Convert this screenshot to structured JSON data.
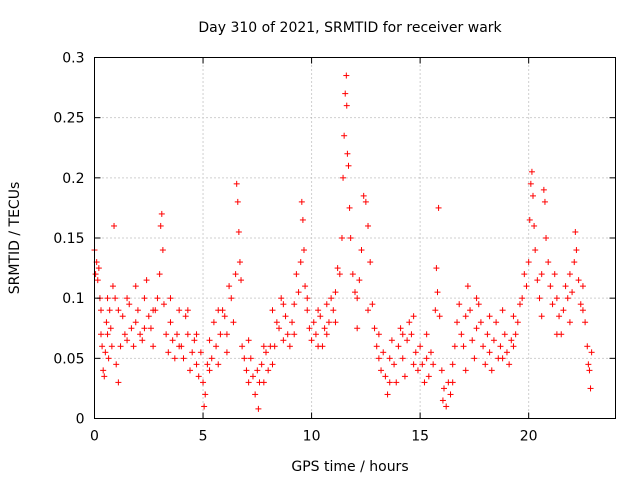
{
  "chart_data": {
    "type": "scatter",
    "title": "Day 310 of 2021, SRMTID for receiver wark",
    "xlabel": "GPS time / hours",
    "ylabel": "SRMTID / TECUs",
    "xlim": [
      0,
      24
    ],
    "ylim": [
      0,
      0.3
    ],
    "xticks": [
      0,
      5,
      10,
      15,
      20
    ],
    "xtick_labels": [
      "0",
      "5",
      "10",
      "15",
      "20"
    ],
    "yticks": [
      0,
      0.05,
      0.1,
      0.15,
      0.2,
      0.25,
      0.3
    ],
    "ytick_labels": [
      "0",
      "0.05",
      "0.1",
      "0.15",
      "0.2",
      "0.25",
      "0.3"
    ],
    "grid": true,
    "marker": "plus",
    "color": "#ff0000",
    "series": [
      {
        "name": "SRMTID",
        "points": [
          [
            0.0,
            0.14
          ],
          [
            0.05,
            0.12
          ],
          [
            0.1,
            0.13
          ],
          [
            0.15,
            0.115
          ],
          [
            0.2,
            0.125
          ],
          [
            0.25,
            0.1
          ],
          [
            0.3,
            0.09
          ],
          [
            0.35,
            0.06
          ],
          [
            0.4,
            0.04
          ],
          [
            0.45,
            0.035
          ],
          [
            0.5,
            0.055
          ],
          [
            0.55,
            0.08
          ],
          [
            0.6,
            0.07
          ],
          [
            0.65,
            0.05
          ],
          [
            0.7,
            0.09
          ],
          [
            0.75,
            0.075
          ],
          [
            0.8,
            0.06
          ],
          [
            0.85,
            0.11
          ],
          [
            0.9,
            0.16
          ],
          [
            0.95,
            0.1
          ],
          [
            1.0,
            0.045
          ],
          [
            1.1,
            0.03
          ],
          [
            1.2,
            0.06
          ],
          [
            1.3,
            0.085
          ],
          [
            1.4,
            0.07
          ],
          [
            1.5,
            0.1
          ],
          [
            1.6,
            0.095
          ],
          [
            1.7,
            0.075
          ],
          [
            1.8,
            0.06
          ],
          [
            1.9,
            0.08
          ],
          [
            2.0,
            0.09
          ],
          [
            2.1,
            0.07
          ],
          [
            2.2,
            0.065
          ],
          [
            2.3,
            0.1
          ],
          [
            2.4,
            0.115
          ],
          [
            2.5,
            0.085
          ],
          [
            2.6,
            0.075
          ],
          [
            2.7,
            0.06
          ],
          [
            2.8,
            0.09
          ],
          [
            2.9,
            0.1
          ],
          [
            3.0,
            0.12
          ],
          [
            3.05,
            0.16
          ],
          [
            3.1,
            0.17
          ],
          [
            3.15,
            0.14
          ],
          [
            3.2,
            0.095
          ],
          [
            3.3,
            0.07
          ],
          [
            3.4,
            0.055
          ],
          [
            3.5,
            0.08
          ],
          [
            3.6,
            0.065
          ],
          [
            3.7,
            0.05
          ],
          [
            3.8,
            0.07
          ],
          [
            3.9,
            0.09
          ],
          [
            4.0,
            0.06
          ],
          [
            4.1,
            0.05
          ],
          [
            4.2,
            0.085
          ],
          [
            4.3,
            0.07
          ],
          [
            4.4,
            0.04
          ],
          [
            4.5,
            0.055
          ],
          [
            4.6,
            0.065
          ],
          [
            4.7,
            0.045
          ],
          [
            4.8,
            0.035
          ],
          [
            4.9,
            0.055
          ],
          [
            5.0,
            0.03
          ],
          [
            5.05,
            0.01
          ],
          [
            5.1,
            0.02
          ],
          [
            5.2,
            0.045
          ],
          [
            5.3,
            0.065
          ],
          [
            5.4,
            0.05
          ],
          [
            5.5,
            0.08
          ],
          [
            5.6,
            0.06
          ],
          [
            5.7,
            0.045
          ],
          [
            5.8,
            0.07
          ],
          [
            5.9,
            0.09
          ],
          [
            6.0,
            0.085
          ],
          [
            6.1,
            0.07
          ],
          [
            6.2,
            0.11
          ],
          [
            6.3,
            0.1
          ],
          [
            6.4,
            0.08
          ],
          [
            6.5,
            0.12
          ],
          [
            6.55,
            0.195
          ],
          [
            6.6,
            0.18
          ],
          [
            6.65,
            0.155
          ],
          [
            6.7,
            0.13
          ],
          [
            6.75,
            0.115
          ],
          [
            6.8,
            0.06
          ],
          [
            6.9,
            0.05
          ],
          [
            7.0,
            0.04
          ],
          [
            7.1,
            0.065
          ],
          [
            7.2,
            0.05
          ],
          [
            7.3,
            0.035
          ],
          [
            7.4,
            0.02
          ],
          [
            7.5,
            0.04
          ],
          [
            7.55,
            0.008
          ],
          [
            7.6,
            0.03
          ],
          [
            7.7,
            0.045
          ],
          [
            7.8,
            0.03
          ],
          [
            7.9,
            0.055
          ],
          [
            8.0,
            0.04
          ],
          [
            8.1,
            0.06
          ],
          [
            8.2,
            0.045
          ],
          [
            8.3,
            0.06
          ],
          [
            8.4,
            0.08
          ],
          [
            8.5,
            0.075
          ],
          [
            8.6,
            0.1
          ],
          [
            8.7,
            0.095
          ],
          [
            8.8,
            0.085
          ],
          [
            8.9,
            0.07
          ],
          [
            9.0,
            0.06
          ],
          [
            9.1,
            0.08
          ],
          [
            9.2,
            0.095
          ],
          [
            9.3,
            0.12
          ],
          [
            9.4,
            0.105
          ],
          [
            9.5,
            0.13
          ],
          [
            9.55,
            0.18
          ],
          [
            9.6,
            0.165
          ],
          [
            9.65,
            0.14
          ],
          [
            9.7,
            0.11
          ],
          [
            9.8,
            0.09
          ],
          [
            9.9,
            0.075
          ],
          [
            10.0,
            0.065
          ],
          [
            10.1,
            0.08
          ],
          [
            10.2,
            0.07
          ],
          [
            10.3,
            0.09
          ],
          [
            10.4,
            0.085
          ],
          [
            10.5,
            0.06
          ],
          [
            10.6,
            0.075
          ],
          [
            10.7,
            0.095
          ],
          [
            10.8,
            0.08
          ],
          [
            10.9,
            0.1
          ],
          [
            11.0,
            0.09
          ],
          [
            11.1,
            0.105
          ],
          [
            11.2,
            0.125
          ],
          [
            11.3,
            0.12
          ],
          [
            11.4,
            0.15
          ],
          [
            11.45,
            0.2
          ],
          [
            11.5,
            0.235
          ],
          [
            11.55,
            0.27
          ],
          [
            11.6,
            0.285
          ],
          [
            11.62,
            0.26
          ],
          [
            11.65,
            0.22
          ],
          [
            11.7,
            0.21
          ],
          [
            11.75,
            0.175
          ],
          [
            11.8,
            0.15
          ],
          [
            11.9,
            0.12
          ],
          [
            12.0,
            0.105
          ],
          [
            12.1,
            0.1
          ],
          [
            12.2,
            0.115
          ],
          [
            12.3,
            0.14
          ],
          [
            12.4,
            0.185
          ],
          [
            12.5,
            0.18
          ],
          [
            12.6,
            0.16
          ],
          [
            12.7,
            0.13
          ],
          [
            12.8,
            0.095
          ],
          [
            12.9,
            0.075
          ],
          [
            13.0,
            0.06
          ],
          [
            13.1,
            0.05
          ],
          [
            13.2,
            0.04
          ],
          [
            13.3,
            0.055
          ],
          [
            13.4,
            0.035
          ],
          [
            13.5,
            0.02
          ],
          [
            13.6,
            0.05
          ],
          [
            13.7,
            0.065
          ],
          [
            13.8,
            0.045
          ],
          [
            13.9,
            0.03
          ],
          [
            14.0,
            0.06
          ],
          [
            14.1,
            0.075
          ],
          [
            14.2,
            0.05
          ],
          [
            14.3,
            0.035
          ],
          [
            14.4,
            0.065
          ],
          [
            14.5,
            0.08
          ],
          [
            14.6,
            0.07
          ],
          [
            14.7,
            0.045
          ],
          [
            14.8,
            0.055
          ],
          [
            14.9,
            0.04
          ],
          [
            15.0,
            0.06
          ],
          [
            15.1,
            0.045
          ],
          [
            15.2,
            0.03
          ],
          [
            15.3,
            0.05
          ],
          [
            15.4,
            0.035
          ],
          [
            15.5,
            0.055
          ],
          [
            15.6,
            0.045
          ],
          [
            15.7,
            0.09
          ],
          [
            15.75,
            0.125
          ],
          [
            15.8,
            0.105
          ],
          [
            15.85,
            0.175
          ],
          [
            15.9,
            0.085
          ],
          [
            16.0,
            0.04
          ],
          [
            16.05,
            0.015
          ],
          [
            16.1,
            0.025
          ],
          [
            16.2,
            0.01
          ],
          [
            16.3,
            0.03
          ],
          [
            16.4,
            0.02
          ],
          [
            16.5,
            0.045
          ],
          [
            16.6,
            0.06
          ],
          [
            16.7,
            0.08
          ],
          [
            16.8,
            0.095
          ],
          [
            16.9,
            0.07
          ],
          [
            17.0,
            0.06
          ],
          [
            17.1,
            0.085
          ],
          [
            17.2,
            0.11
          ],
          [
            17.3,
            0.09
          ],
          [
            17.4,
            0.065
          ],
          [
            17.5,
            0.05
          ],
          [
            17.6,
            0.075
          ],
          [
            17.7,
            0.095
          ],
          [
            17.8,
            0.08
          ],
          [
            17.9,
            0.06
          ],
          [
            18.0,
            0.045
          ],
          [
            18.1,
            0.07
          ],
          [
            18.2,
            0.055
          ],
          [
            18.3,
            0.04
          ],
          [
            18.4,
            0.065
          ],
          [
            18.5,
            0.08
          ],
          [
            18.6,
            0.05
          ],
          [
            18.7,
            0.06
          ],
          [
            18.8,
            0.09
          ],
          [
            18.9,
            0.07
          ],
          [
            19.0,
            0.055
          ],
          [
            19.1,
            0.045
          ],
          [
            19.2,
            0.065
          ],
          [
            19.3,
            0.085
          ],
          [
            19.4,
            0.07
          ],
          [
            19.5,
            0.08
          ],
          [
            19.6,
            0.095
          ],
          [
            19.7,
            0.1
          ],
          [
            19.8,
            0.12
          ],
          [
            19.9,
            0.11
          ],
          [
            20.0,
            0.13
          ],
          [
            20.05,
            0.165
          ],
          [
            20.1,
            0.195
          ],
          [
            20.15,
            0.205
          ],
          [
            20.2,
            0.185
          ],
          [
            20.25,
            0.16
          ],
          [
            20.3,
            0.14
          ],
          [
            20.4,
            0.115
          ],
          [
            20.5,
            0.1
          ],
          [
            20.6,
            0.12
          ],
          [
            20.7,
            0.19
          ],
          [
            20.75,
            0.18
          ],
          [
            20.8,
            0.15
          ],
          [
            20.9,
            0.13
          ],
          [
            21.0,
            0.11
          ],
          [
            21.1,
            0.095
          ],
          [
            21.2,
            0.12
          ],
          [
            21.3,
            0.1
          ],
          [
            21.4,
            0.085
          ],
          [
            21.5,
            0.07
          ],
          [
            21.6,
            0.09
          ],
          [
            21.7,
            0.11
          ],
          [
            21.8,
            0.1
          ],
          [
            21.9,
            0.08
          ],
          [
            22.0,
            0.105
          ],
          [
            22.1,
            0.13
          ],
          [
            22.15,
            0.155
          ],
          [
            22.2,
            0.14
          ],
          [
            22.3,
            0.115
          ],
          [
            22.4,
            0.095
          ],
          [
            22.5,
            0.11
          ],
          [
            22.6,
            0.08
          ],
          [
            22.7,
            0.06
          ],
          [
            22.75,
            0.045
          ],
          [
            22.8,
            0.04
          ],
          [
            22.85,
            0.025
          ],
          [
            22.9,
            0.055
          ],
          [
            0.3,
            0.07
          ],
          [
            0.6,
            0.1
          ],
          [
            1.1,
            0.09
          ],
          [
            1.5,
            0.065
          ],
          [
            1.9,
            0.11
          ],
          [
            2.3,
            0.075
          ],
          [
            2.7,
            0.09
          ],
          [
            3.5,
            0.1
          ],
          [
            3.9,
            0.06
          ],
          [
            4.3,
            0.09
          ],
          [
            4.7,
            0.07
          ],
          [
            5.3,
            0.04
          ],
          [
            5.7,
            0.09
          ],
          [
            6.1,
            0.055
          ],
          [
            7.1,
            0.03
          ],
          [
            7.8,
            0.06
          ],
          [
            8.2,
            0.09
          ],
          [
            8.7,
            0.065
          ],
          [
            9.2,
            0.07
          ],
          [
            9.8,
            0.1
          ],
          [
            10.3,
            0.06
          ],
          [
            10.7,
            0.07
          ],
          [
            11.1,
            0.08
          ],
          [
            12.1,
            0.075
          ],
          [
            12.6,
            0.09
          ],
          [
            13.1,
            0.07
          ],
          [
            13.6,
            0.03
          ],
          [
            14.2,
            0.07
          ],
          [
            14.7,
            0.085
          ],
          [
            15.3,
            0.07
          ],
          [
            16.5,
            0.03
          ],
          [
            17.1,
            0.04
          ],
          [
            17.6,
            0.1
          ],
          [
            18.2,
            0.085
          ],
          [
            18.8,
            0.05
          ],
          [
            19.3,
            0.06
          ],
          [
            20.6,
            0.085
          ],
          [
            21.3,
            0.07
          ],
          [
            21.9,
            0.12
          ],
          [
            22.5,
            0.09
          ]
        ]
      }
    ]
  }
}
